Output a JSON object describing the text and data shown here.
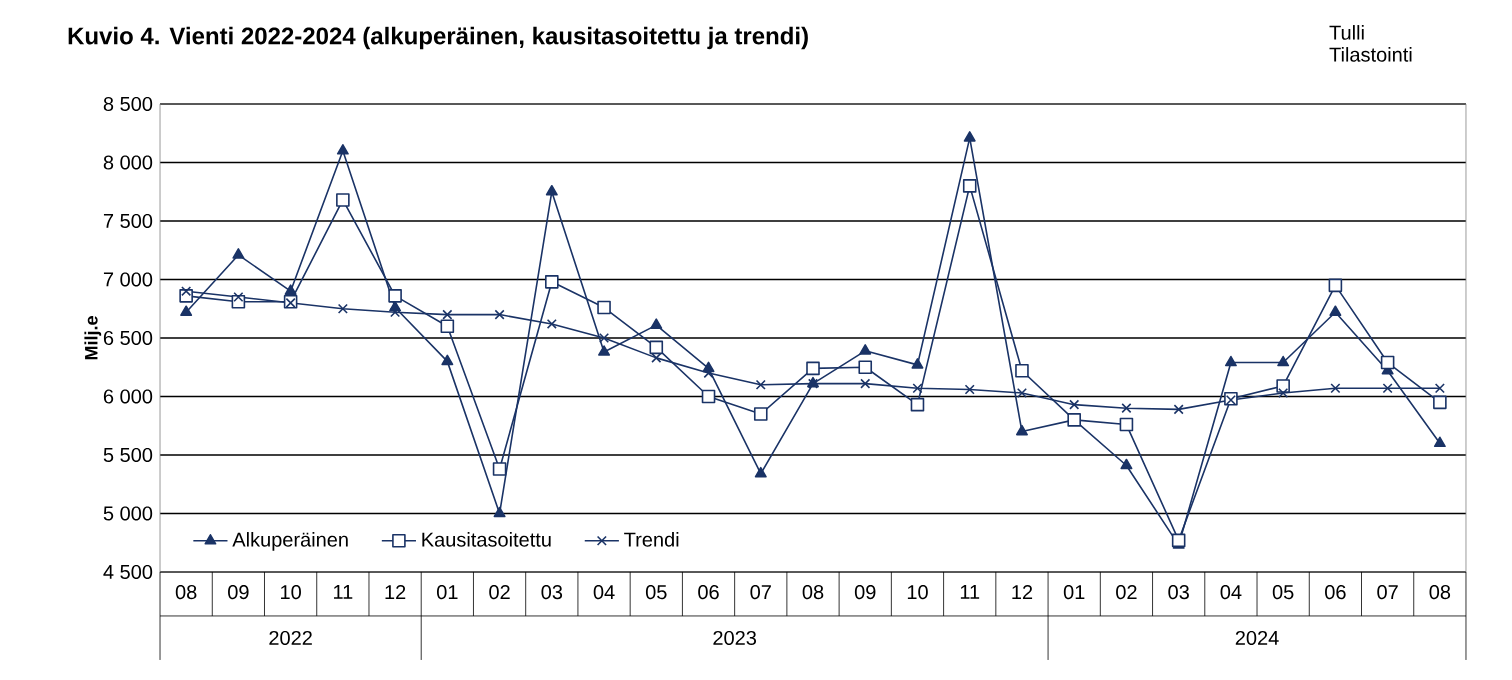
{
  "chart_data": {
    "type": "line",
    "title": "Kuvio 4. Vienti 2022-2024  (alkuperäinen, kausitasoitettu  ja trendi)",
    "ylabel": "Milj.e",
    "annotations": [
      "Tulli Tilastointi",
      "2022",
      "2023",
      "2024"
    ],
    "categories": [
      "08",
      "09",
      "10",
      "11",
      "12",
      "01",
      "02",
      "03",
      "04",
      "05",
      "06",
      "07",
      "08",
      "09",
      "10",
      "11",
      "12",
      "01",
      "02",
      "03",
      "04",
      "05",
      "06",
      "07",
      "08"
    ],
    "series": [
      {
        "name": "Alkuperäinen",
        "color": "#1a3366",
        "marker": "triangle",
        "values": [
          6720,
          7210,
          6900,
          8100,
          6760,
          6300,
          5000,
          7750,
          6380,
          6610,
          6240,
          5340,
          6110,
          6390,
          6270,
          8210,
          5700,
          5800,
          5410,
          4730,
          6290,
          6290,
          6720,
          6220,
          5600
        ]
      },
      {
        "name": "Kausitasoitettu",
        "color": "#1a3366",
        "marker": "square",
        "values": [
          6860,
          6810,
          6810,
          7680,
          6860,
          6600,
          5380,
          6980,
          6760,
          6420,
          6000,
          5850,
          6240,
          6250,
          5930,
          7800,
          6220,
          5800,
          5760,
          4770,
          5980,
          6090,
          6950,
          6290,
          5950
        ]
      },
      {
        "name": "Trendi",
        "color": "#1a3366",
        "marker": "cross",
        "values": [
          6900,
          6850,
          6800,
          6750,
          6720,
          6700,
          6700,
          6620,
          6500,
          6330,
          6200,
          6100,
          6110,
          6110,
          6070,
          6060,
          6030,
          5930,
          5900,
          5890,
          5970,
          6030,
          6070,
          6070,
          6070
        ]
      }
    ],
    "ylim": [
      4500,
      8500
    ],
    "yticks": [
      {
        "value": 4500,
        "label": "4 500"
      },
      {
        "value": 5000,
        "label": "5 000"
      },
      {
        "value": 5500,
        "label": "5 500"
      },
      {
        "value": 6000,
        "label": "6 000"
      },
      {
        "value": 6500,
        "label": "6 500"
      },
      {
        "value": 7000,
        "label": "7 000"
      },
      {
        "value": 7500,
        "label": "7 500"
      },
      {
        "value": 8000,
        "label": "8 000"
      },
      {
        "value": 8500,
        "label": "8 500"
      }
    ],
    "grid": "y",
    "legend": "bottom left",
    "line_style": "solid"
  }
}
